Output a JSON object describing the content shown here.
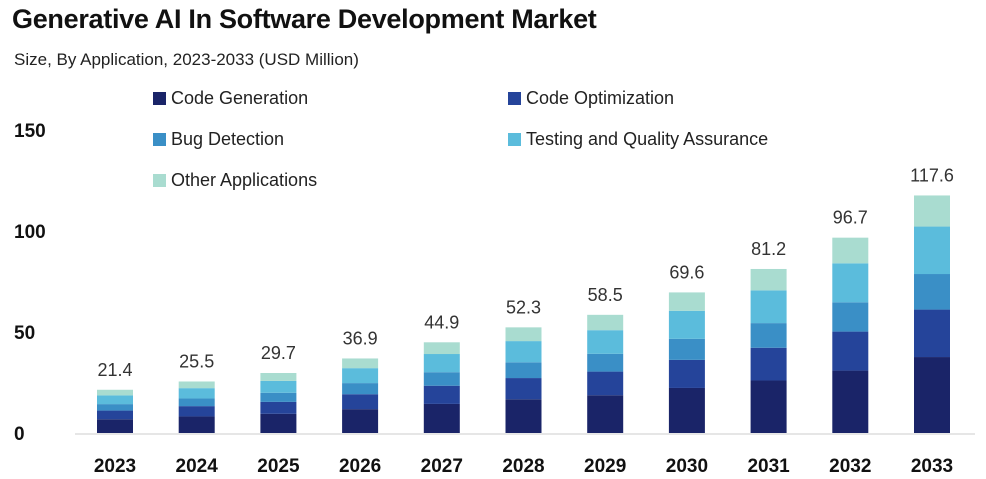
{
  "chart_data": {
    "type": "bar",
    "stacked": true,
    "title": "Generative AI In Software Development Market",
    "subtitle": "Size, By Application, 2023-2033 (USD Million)",
    "xlabel": "",
    "ylabel": "",
    "ylim": [
      0,
      150
    ],
    "yticks": [
      "0",
      "50",
      "100",
      "150"
    ],
    "ytick_values": [
      0,
      50,
      100,
      150
    ],
    "grid": false,
    "legend_placement": "top-left",
    "categories": [
      "2023",
      "2024",
      "2025",
      "2026",
      "2027",
      "2028",
      "2029",
      "2030",
      "2031",
      "2032",
      "2033"
    ],
    "totals": [
      "21.4",
      "25.5",
      "29.7",
      "36.9",
      "44.9",
      "52.3",
      "58.5",
      "69.6",
      "81.2",
      "96.7",
      "117.6"
    ],
    "series": [
      {
        "name": "Code Generation",
        "color": "#1a2468",
        "values": [
          6.8,
          8.2,
          9.5,
          11.8,
          14.4,
          16.7,
          18.7,
          22.3,
          26.0,
          30.9,
          37.6
        ]
      },
      {
        "name": "Code Optimization",
        "color": "#25449a",
        "values": [
          4.3,
          5.1,
          5.9,
          7.4,
          9.0,
          10.5,
          11.7,
          13.9,
          16.2,
          19.3,
          23.5
        ]
      },
      {
        "name": "Bug Detection",
        "color": "#3a8fc6",
        "values": [
          3.2,
          3.8,
          4.5,
          5.5,
          6.7,
          7.8,
          8.8,
          10.4,
          12.2,
          14.5,
          17.6
        ]
      },
      {
        "name": "Testing and Quality Assurance",
        "color": "#5bbcdc",
        "values": [
          4.3,
          5.1,
          5.9,
          7.4,
          9.0,
          10.5,
          11.7,
          13.9,
          16.2,
          19.3,
          23.5
        ]
      },
      {
        "name": "Other Applications",
        "color": "#a9dcd0",
        "values": [
          2.8,
          3.3,
          3.9,
          4.8,
          5.8,
          6.8,
          7.6,
          9.1,
          10.6,
          12.7,
          15.4
        ]
      }
    ]
  }
}
